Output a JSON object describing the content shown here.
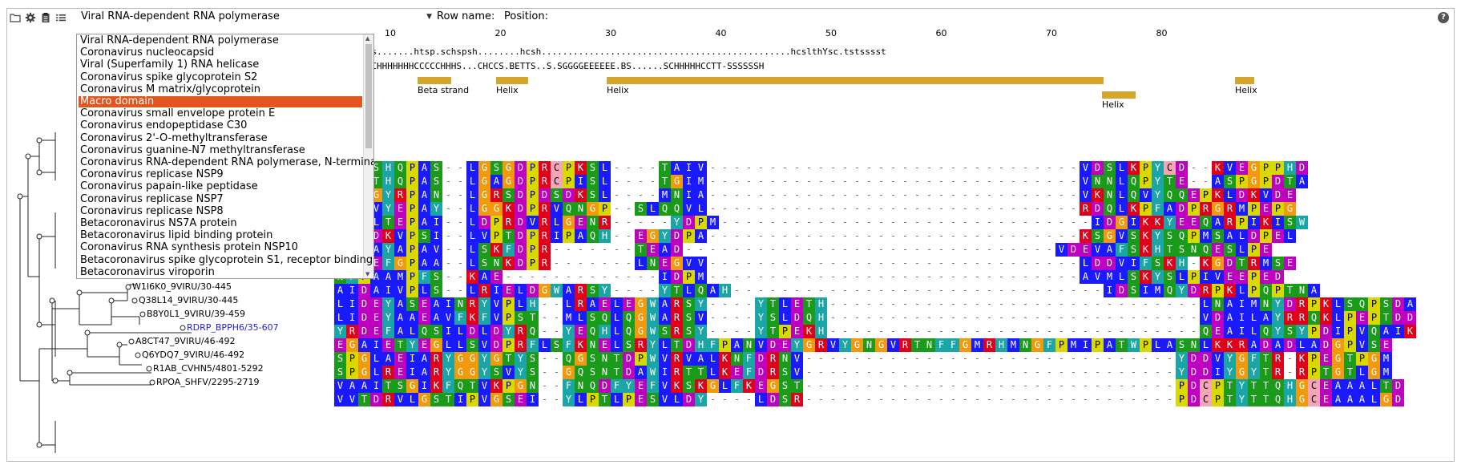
{
  "toolbar": {
    "icons": [
      "folder-icon",
      "gear-icon",
      "clipboard-icon",
      "list-icon"
    ],
    "family_value": "Viral RNA-dependent RNA polymerase",
    "row_name_label": "Row name:",
    "position_label": "Position:",
    "help_glyph": "?"
  },
  "dropdown": {
    "options": [
      "Viral RNA-dependent RNA polymerase",
      "Coronavirus nucleocapsid",
      "Viral (Superfamily 1) RNA helicase",
      "Coronavirus spike glycoprotein S2",
      "Coronavirus M matrix/glycoprotein",
      "Macro domain",
      "Coronavirus small envelope protein E",
      "Coronavirus endopeptidase C30",
      "Coronavirus 2'-O-methyltransferase",
      "Coronavirus guanine-N7 methyltransferase",
      "Coronavirus RNA-dependent RNA polymerase, N-terminal",
      "Coronavirus replicase NSP9",
      "Coronavirus papain-like peptidase",
      "Coronavirus replicase NSP7",
      "Coronavirus replicase NSP8",
      "Betacoronavirus NS7A protein",
      "Betacoronavirus lipid binding protein",
      "Coronavirus RNA synthesis protein NSP10",
      "Betacoronavirus spike glycoprotein S1, receptor binding",
      "Betacoronavirus viroporin"
    ],
    "selected_index": 5
  },
  "ruler": [
    "10",
    "20",
    "30",
    "40",
    "50",
    "60",
    "70",
    "80"
  ],
  "hmm_row": "phsshsPs.......htsp.schspsh........hcsh...............................................hcslthYsc.tstsssst",
  "ss_row": "TEETCECCHHHHHHHCCCCCHHHS...CHCCS.BETTS..S.SGGGGEEEEEE.BS......SCHHHHHCCTT-SSSSSSH",
  "ss_annotations": [
    {
      "label": "Beta strand",
      "row": 0
    },
    {
      "label": "Helix",
      "row": 0
    },
    {
      "label": "Helix",
      "row": 0
    },
    {
      "label": "Helix",
      "row": 1
    },
    {
      "label": "Helix",
      "row": 0
    }
  ],
  "tree_leaves": [
    {
      "name": "W1I6K0_9VIRU/30-445",
      "blue": false
    },
    {
      "name": "Q38L14_9VIRU/30-445",
      "blue": false
    },
    {
      "name": "B8Y0L1_9VIRU/39-459",
      "blue": false
    },
    {
      "name": "RDRP_BPPH6/35-607",
      "blue": true
    },
    {
      "name": "A8CT47_9VIRU/46-492",
      "blue": false
    },
    {
      "name": "Q6YDQ7_9VIRU/46-492",
      "blue": false
    },
    {
      "name": "R1AB_CVHN5/4801-5292",
      "blue": false
    },
    {
      "name": "RPOA_SHFV/2295-2719",
      "blue": false
    }
  ],
  "sequences": [
    "EECSHQPAS--LGSGDPRCPKSL----TAIV-------------------------------VDSLKPYCD--KVEGPPHD",
    "EECTHQPAS--LGAGDPRCPISL----TGIM-------------------------------VNNLQPYTE--ASPGPDTA",
    "KT-GYRPAN--LGRSDPDSDKSL----MNIA-------------------------------VKNLQVYQQEPKLDKVDE",
    "PPGVYEPAY--LGGKDPRVQNGP--SLQQVL-------------------------------RDQLKPFADPRGRMPEPG",
    "RKPLTEPAI--LDPRDVRLGENR-----YDPM-------------------------------IDGIKKYEEQARPIKISW",
    "TPCDKVPSI--LVPTDPRIPAQH--EGYDPA-------------------------------KSGVSKYSQPMSALDPEL",
    "FQPAYAPAV--LSKFDPR-------TEAD-------------------------------VDEVAFSKHTSNQESLPE",
    "FNPEFGPAA--LSNKDPR-------LNEGVV-------------------------------LDDVIFSKH-KGDTRMSE",
    "NFPAAMPFS--KAE-------------IDPM-------------------------------AVMLSKYSLPIVEEPED",
    "AIDAIVPLS--LRIELDGWARSY----YTLQAH-------------------------------IDSIMQYDRPKLPQPTNA",
    "LIDEYASEAINRYVPLH--LRAELEGWARSY----YTLETH-------------------------------LNAIMNYDRPKLSQPSDA",
    "LIDEYAAEAVFKFVPST--MLSQLQGWARSV----YSLDQH-------------------------------VDAILAYRRQKLPEPTDD",
    "YRDEFALQSILDLDYRQ--YEQHLQGWSRSY----YTPEKH-------------------------------QEAILQYSYPDIPVQAIK",
    "EGAIETYEGLLSVDPRFLSFKNELSRYLTDHFPANVDEYGRVYGNGVRTNFFGMRHMNGFPMIPATWPLASNLKKRADADLADGPVSE",
    "SPGLAEIARYGGYGTYS--QGSNTDPWVRVALKNFDRNV-------------------------------YDDVYGFTR-KPEGTPGM",
    "SPGLREIARYGGYSVYS--GQSNTDAWIRTTLKEFDRSV-------------------------------YDDIYGYTR-RPTGTLGM",
    "VAAITSGIKFQTVKPGN--FNQDFYEFVKSKGLFKEGST-------------------------------PDCPTYTTQHGCEAAALTD",
    "VVTDRVLGSTIPVGSEI--YLPTLPESVLDY----LDSR-------------------------------PDCPTYTTQHGCEAAALGD"
  ],
  "colors": {
    "hydrophobic": "#1a1aff",
    "positive": "#e0001a",
    "negative": "#c000c0",
    "polar": "#1a9c1a",
    "glycine": "#f29a0b",
    "proline": "#d9d900",
    "aromatic": "#1aa6a6",
    "cys": "#f4a6b8",
    "accent_selection": "#e0561e",
    "ss_bar": "#d4a72c"
  }
}
